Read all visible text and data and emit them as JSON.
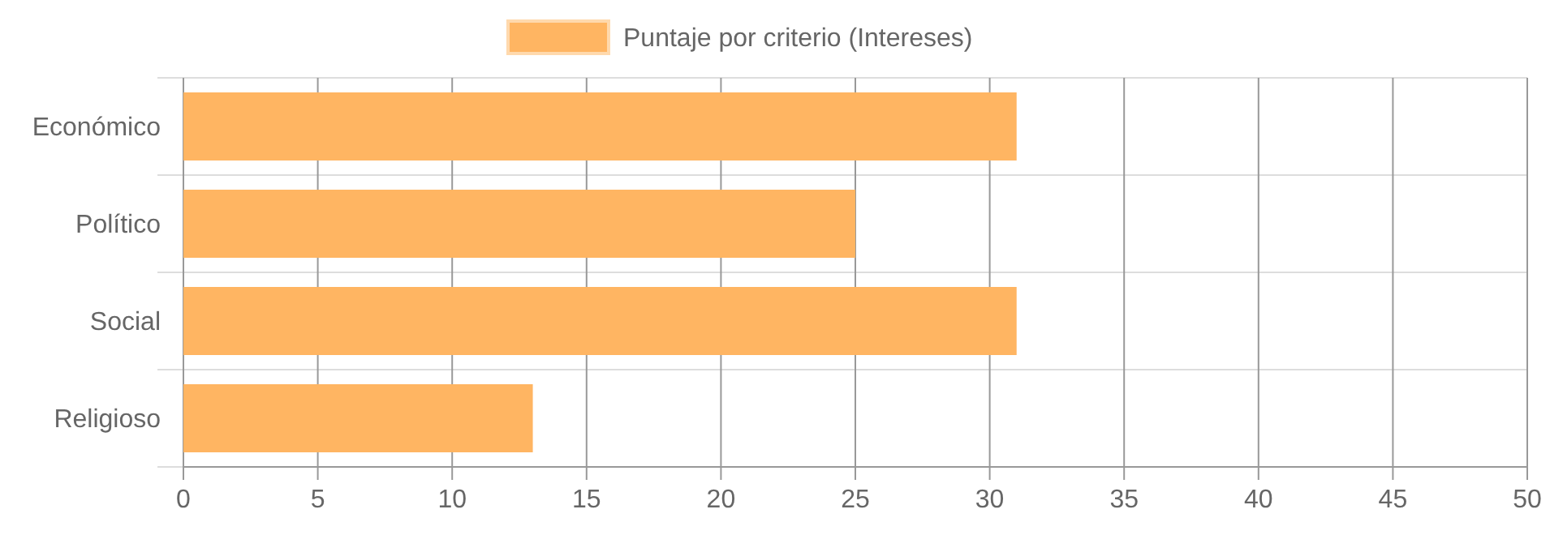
{
  "chart_data": {
    "type": "bar",
    "orientation": "horizontal",
    "categories": [
      "Económico",
      "Político",
      "Social",
      "Religioso"
    ],
    "series": [
      {
        "name": "Puntaje por criterio (Intereses)",
        "color": "#ffb562",
        "values": [
          31,
          25,
          31,
          13
        ]
      }
    ],
    "xlim": [
      0,
      50
    ],
    "xticks": [
      0,
      5,
      10,
      15,
      20,
      25,
      30,
      35,
      40,
      45,
      50
    ],
    "grid": true,
    "legend": "top"
  }
}
